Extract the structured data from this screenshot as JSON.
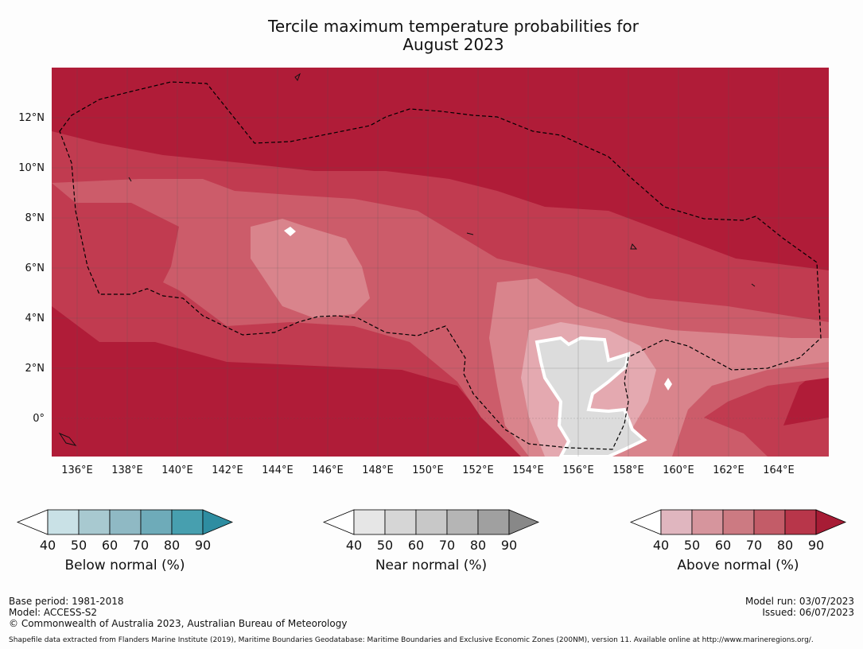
{
  "title_line1": "Tercile maximum temperature probabilities for",
  "title_line2": "August 2023",
  "map": {
    "lat_labels": [
      "12°N",
      "10°N",
      "8°N",
      "6°N",
      "4°N",
      "2°N",
      "0°"
    ],
    "lon_labels": [
      "136°E",
      "138°E",
      "140°E",
      "142°E",
      "144°E",
      "146°E",
      "148°E",
      "150°E",
      "152°E",
      "154°E",
      "156°E",
      "158°E",
      "160°E",
      "162°E",
      "164°E"
    ],
    "colors": {
      "above_90": "#b01c38",
      "above_80": "#c13b50",
      "above_70": "#cc5c6a",
      "above_60": "#d9848c",
      "above_50": "#e4a9b0",
      "near_60": "#dcdcdc",
      "near_50": "#e8e8e8"
    }
  },
  "legends": [
    {
      "name": "Below normal (%)",
      "colors": [
        "#ffffff",
        "#c9e1e6",
        "#a8c9d0",
        "#8fb9c4",
        "#6eabb9",
        "#479faf",
        "#2e8da1"
      ]
    },
    {
      "name": "Near normal (%)",
      "colors": [
        "#ffffff",
        "#e6e6e6",
        "#d6d6d6",
        "#c8c8c8",
        "#b5b5b5",
        "#a0a0a0",
        "#888888"
      ]
    },
    {
      "name": "Above normal (%)",
      "colors": [
        "#ffffff",
        "#e0b6bf",
        "#d6959d",
        "#cc7a82",
        "#c35c68",
        "#b8364a",
        "#a71c35"
      ]
    }
  ],
  "legend_ticks": [
    "40",
    "50",
    "60",
    "70",
    "80",
    "90"
  ],
  "footer": {
    "base_period": "Base period: 1981-2018",
    "model": "Model: ACCESS-S2",
    "copyright": "© Commonwealth of Australia 2023, Australian Bureau of Meteorology",
    "model_run": "Model run: 03/07/2023",
    "issued": "Issued: 06/07/2023",
    "shapefile": "Shapefile data extracted from Flanders Marine Institute (2019), Maritime Boundaries Geodatabase: Maritime Boundaries and Exclusive Economic Zones (200NM), version 11. Available online at http://www.marineregions.org/."
  }
}
